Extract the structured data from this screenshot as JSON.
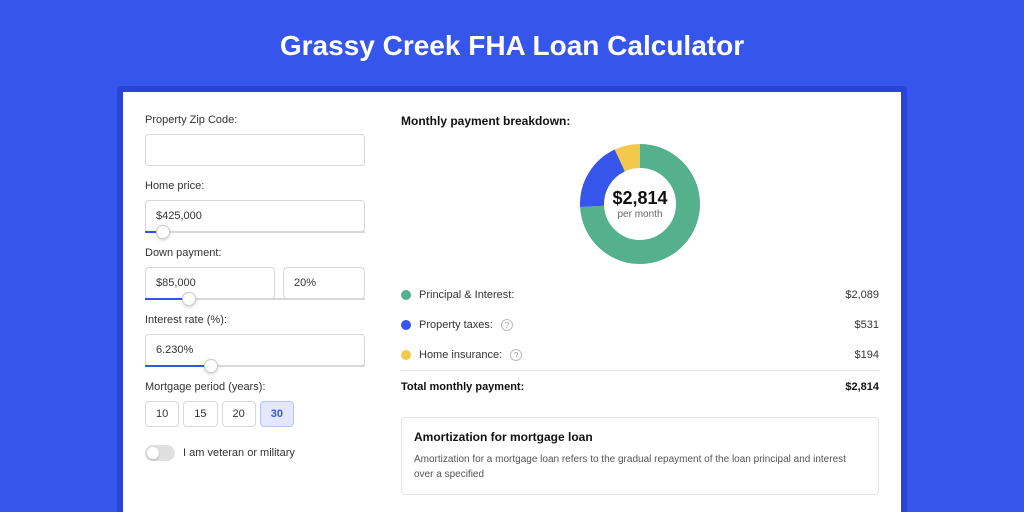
{
  "page": {
    "title": "Grassy Creek FHA Loan Calculator",
    "colors": {
      "bg": "#3555eb",
      "shadow": "#2744d4",
      "primary": "#3555eb"
    }
  },
  "form": {
    "zip": {
      "label": "Property Zip Code:",
      "value": ""
    },
    "price": {
      "label": "Home price:",
      "value": "$425,000",
      "slider_pct": 8
    },
    "down": {
      "label": "Down payment:",
      "amount": "$85,000",
      "pct": "20%",
      "slider_pct": 20
    },
    "rate": {
      "label": "Interest rate (%):",
      "value": "6.230%",
      "slider_pct": 30
    },
    "period": {
      "label": "Mortgage period (years):",
      "options": [
        "10",
        "15",
        "20",
        "30"
      ],
      "selected": "30"
    },
    "veteran": {
      "label": "I am veteran or military",
      "on": false
    }
  },
  "breakdown": {
    "title": "Monthly payment breakdown:",
    "donut": {
      "amount": "$2,814",
      "sub": "per month",
      "slices": [
        {
          "color": "#55b08d",
          "pct": 74.2
        },
        {
          "color": "#3555eb",
          "pct": 18.9
        },
        {
          "color": "#f2c94c",
          "pct": 6.9
        }
      ],
      "thickness": 24
    },
    "rows": [
      {
        "label": "Principal & Interest:",
        "color": "#55b08d",
        "value": "$2,089",
        "help": false
      },
      {
        "label": "Property taxes:",
        "color": "#3555eb",
        "value": "$531",
        "help": true
      },
      {
        "label": "Home insurance:",
        "color": "#f2c94c",
        "value": "$194",
        "help": true
      }
    ],
    "total": {
      "label": "Total monthly payment:",
      "value": "$2,814"
    }
  },
  "amort": {
    "title": "Amortization for mortgage loan",
    "text": "Amortization for a mortgage loan refers to the gradual repayment of the loan principal and interest over a specified"
  }
}
